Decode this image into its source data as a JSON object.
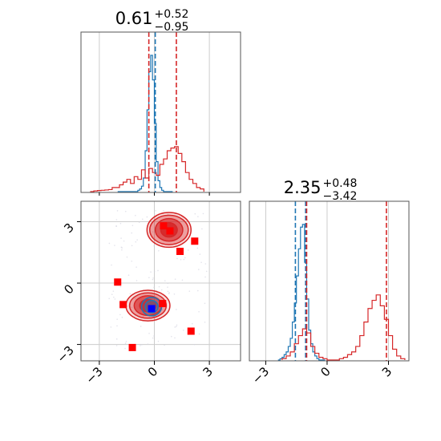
{
  "chart_data": [
    {
      "type": "histogram",
      "panel": "marginal-x",
      "title": {
        "value": "0.61",
        "plus": "+0.52",
        "minus": "−0.95"
      },
      "xlim": [
        -4.0,
        4.7
      ],
      "grid": true,
      "series": [
        {
          "color": "#1f77b4",
          "bins_x": [
            -2.0,
            -1.9,
            -1.8,
            -1.7,
            -1.6,
            -1.5,
            -1.4,
            -1.3,
            -1.2,
            -1.1,
            -1.0,
            -0.9,
            -0.8,
            -0.7,
            -0.6,
            -0.5,
            -0.4,
            -0.3,
            -0.2,
            -0.1,
            0.0,
            0.1,
            0.2,
            0.3,
            0.4,
            0.5,
            0.6,
            0.7,
            0.8,
            0.9
          ],
          "density": [
            0,
            0,
            0,
            0,
            0,
            0,
            0,
            0,
            0,
            0,
            0,
            0.01,
            0.02,
            0.04,
            0.1,
            0.3,
            0.6,
            0.88,
            1.0,
            0.82,
            0.5,
            0.22,
            0.08,
            0.03,
            0.01,
            0,
            0,
            0,
            0,
            0
          ]
        },
        {
          "color": "#d62728",
          "bins_x": [
            -3.5,
            -3.3,
            -3.1,
            -2.9,
            -2.7,
            -2.5,
            -2.3,
            -2.1,
            -1.9,
            -1.7,
            -1.5,
            -1.3,
            -1.1,
            -0.9,
            -0.7,
            -0.5,
            -0.3,
            -0.1,
            0.1,
            0.3,
            0.5,
            0.7,
            0.9,
            1.1,
            1.3,
            1.5,
            1.7,
            1.9,
            2.1,
            2.3,
            2.5
          ],
          "density": [
            0,
            0.005,
            0.008,
            0.01,
            0.012,
            0.015,
            0.03,
            0.03,
            0.05,
            0.07,
            0.09,
            0.06,
            0.11,
            0.09,
            0.16,
            0.1,
            0.17,
            0.14,
            0.12,
            0.2,
            0.24,
            0.3,
            0.32,
            0.33,
            0.28,
            0.22,
            0.14,
            0.09,
            0.06,
            0.03,
            0.02
          ]
        }
      ],
      "lines": [
        {
          "x": -0.3,
          "color": "#d62728",
          "style": "dashed"
        },
        {
          "x": 0.05,
          "color": "#1f77b4",
          "style": "dashed"
        },
        {
          "x": 1.2,
          "color": "#d62728",
          "style": "dashed"
        }
      ]
    },
    {
      "type": "contour",
      "panel": "joint",
      "xlim": [
        -4.0,
        4.7
      ],
      "ylim": [
        -3.8,
        4.0
      ],
      "xticks": [
        "−3",
        "0",
        "3"
      ],
      "yticks": [
        "3",
        "0",
        "−3"
      ],
      "xtick_values": [
        -3,
        0,
        3
      ],
      "ytick_values": [
        3,
        0,
        -3
      ],
      "grid": true,
      "contours": [
        {
          "color": "#d62728",
          "center": [
            0.8,
            2.6
          ],
          "levels": [
            [
              1.2,
              0.85
            ],
            [
              1.05,
              0.72
            ],
            [
              0.75,
              0.55
            ],
            [
              0.45,
              0.35
            ]
          ]
        },
        {
          "color": "#d62728",
          "center": [
            -0.35,
            -1.1
          ],
          "levels": [
            [
              1.2,
              0.75
            ],
            [
              1.0,
              0.62
            ],
            [
              0.75,
              0.48
            ],
            [
              0.45,
              0.3
            ]
          ]
        },
        {
          "color": "#1f77b4",
          "center": [
            -0.15,
            -1.15
          ],
          "levels": [
            [
              0.55,
              0.45
            ],
            [
              0.35,
              0.3
            ]
          ]
        }
      ],
      "squares": [
        {
          "x": 0.5,
          "y": 2.8,
          "color": "red"
        },
        {
          "x": 0.85,
          "y": 2.55,
          "color": "red"
        },
        {
          "x": 2.2,
          "y": 2.05,
          "color": "red"
        },
        {
          "x": 1.4,
          "y": 1.55,
          "color": "red"
        },
        {
          "x": -2.0,
          "y": 0.05,
          "color": "red"
        },
        {
          "x": -1.7,
          "y": -1.05,
          "color": "red"
        },
        {
          "x": 0.45,
          "y": -1.0,
          "color": "red"
        },
        {
          "x": -0.15,
          "y": -1.25,
          "color": "blue"
        },
        {
          "x": 2.0,
          "y": -2.35,
          "color": "red"
        },
        {
          "x": -1.2,
          "y": -3.15,
          "color": "red"
        }
      ]
    },
    {
      "type": "histogram",
      "panel": "marginal-y",
      "title": {
        "value": "2.35",
        "plus": "+0.48",
        "minus": "−3.42"
      },
      "xlim": [
        -3.8,
        4.0
      ],
      "xticks": [
        "−3",
        "0",
        "3"
      ],
      "xtick_values": [
        -3,
        0,
        3
      ],
      "grid": true,
      "series": [
        {
          "color": "#1f77b4",
          "bins_x": [
            -2.4,
            -2.3,
            -2.2,
            -2.1,
            -2.0,
            -1.9,
            -1.8,
            -1.7,
            -1.6,
            -1.5,
            -1.4,
            -1.3,
            -1.2,
            -1.1,
            -1.0,
            -0.9,
            -0.8,
            -0.7,
            -0.6,
            -0.5,
            -0.4,
            -0.3,
            -0.2
          ],
          "density": [
            0,
            0.01,
            0.02,
            0.04,
            0.06,
            0.1,
            0.16,
            0.28,
            0.42,
            0.62,
            0.82,
            0.98,
            1.0,
            0.72,
            0.45,
            0.22,
            0.12,
            0.06,
            0.03,
            0.01,
            0,
            0,
            0
          ]
        },
        {
          "color": "#d62728",
          "bins_x": [
            -2.2,
            -2.0,
            -1.8,
            -1.6,
            -1.4,
            -1.2,
            -1.0,
            -0.8,
            -0.6,
            -0.4,
            -0.2,
            0.0,
            0.2,
            0.4,
            0.6,
            0.8,
            1.0,
            1.2,
            1.4,
            1.6,
            1.8,
            2.0,
            2.2,
            2.4,
            2.6,
            2.8,
            3.0,
            3.2,
            3.4,
            3.6
          ],
          "density": [
            0.01,
            0.03,
            0.06,
            0.12,
            0.18,
            0.23,
            0.2,
            0.1,
            0.05,
            0.02,
            0.01,
            0,
            0,
            0,
            0.01,
            0.02,
            0.04,
            0.06,
            0.1,
            0.18,
            0.28,
            0.38,
            0.44,
            0.48,
            0.4,
            0.3,
            0.18,
            0.08,
            0.03,
            0.01
          ]
        }
      ],
      "lines": [
        {
          "x": -1.55,
          "color": "#1f77b4",
          "style": "dashed"
        },
        {
          "x": -1.05,
          "color": "#1f77b4",
          "style": "dashed"
        },
        {
          "x": -1.0,
          "color": "#d62728",
          "style": "dashed"
        },
        {
          "x": 2.9,
          "color": "#d62728",
          "style": "dashed"
        }
      ]
    }
  ]
}
